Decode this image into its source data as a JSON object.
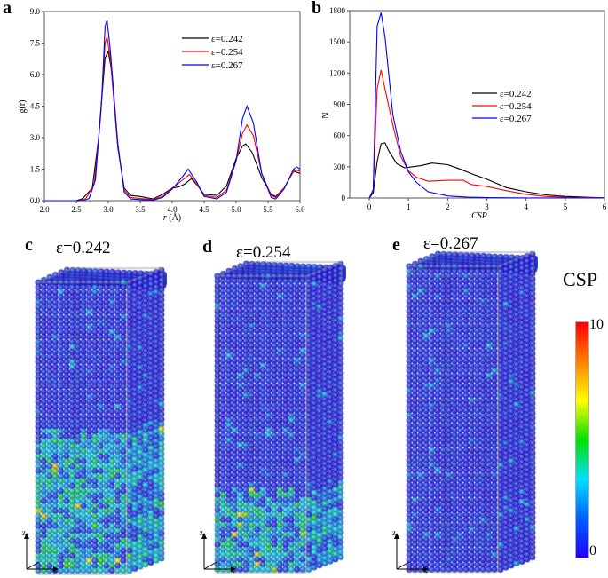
{
  "panels": {
    "a": "a",
    "b": "b",
    "c": "c",
    "d": "d",
    "e": "e"
  },
  "sim_titles": [
    "ε=0.242",
    "ε=0.254",
    "ε=0.267"
  ],
  "axis_triad": {
    "z": "z",
    "x": "x"
  },
  "colorbar": {
    "title": "CSP",
    "max_label": "10",
    "min_label": "0",
    "colors": [
      "#2000ff",
      "#0060ff",
      "#00e0ff",
      "#00e000",
      "#ffff00",
      "#ff8000",
      "#ff0000"
    ]
  },
  "chart_data": [
    {
      "type": "line",
      "panel": "a",
      "xlabel_var": "r",
      "xlabel_unit": "(Å)",
      "ylabel": "g(r)",
      "xlim": [
        2.0,
        6.0
      ],
      "ylim": [
        0,
        9.0
      ],
      "xticks": [
        "2.0",
        "2.5",
        "3.0",
        "3.5",
        "4.0",
        "4.5",
        "5.0",
        "5.5",
        "6.0"
      ],
      "yticks": [
        "0.0",
        "1.5",
        "3.0",
        "4.5",
        "6.0",
        "7.5",
        "9.0"
      ],
      "legend": "top-right",
      "series": [
        {
          "name": "ε=0.242",
          "color": "#000000",
          "x": [
            2.0,
            2.5,
            2.6,
            2.75,
            2.85,
            2.95,
            3.0,
            3.05,
            3.15,
            3.25,
            3.35,
            3.5,
            3.7,
            3.85,
            4.0,
            4.1,
            4.2,
            4.3,
            4.4,
            4.5,
            4.7,
            4.85,
            5.0,
            5.1,
            5.15,
            5.25,
            5.4,
            5.55,
            5.62,
            5.75,
            5.9,
            6.0
          ],
          "y": [
            0,
            0,
            0.1,
            0.6,
            3.0,
            6.8,
            7.1,
            6.2,
            2.5,
            0.6,
            0.25,
            0.2,
            0.08,
            0.3,
            0.6,
            0.65,
            0.8,
            1.05,
            0.7,
            0.3,
            0.25,
            0.7,
            2.0,
            2.6,
            2.7,
            2.3,
            1.1,
            0.3,
            0.2,
            0.6,
            1.4,
            1.3
          ]
        },
        {
          "name": "ε=0.254",
          "color": "#ff0000",
          "x": [
            2.0,
            2.55,
            2.65,
            2.78,
            2.88,
            2.95,
            2.98,
            3.03,
            3.15,
            3.25,
            3.35,
            3.5,
            3.7,
            3.85,
            4.0,
            4.15,
            4.27,
            4.38,
            4.5,
            4.7,
            4.85,
            5.0,
            5.1,
            5.17,
            5.27,
            5.4,
            5.55,
            5.62,
            5.75,
            5.9,
            5.95,
            6.0
          ],
          "y": [
            0,
            0,
            0.1,
            0.8,
            4.0,
            7.5,
            7.8,
            6.8,
            2.6,
            0.5,
            0.15,
            0.1,
            0.05,
            0.2,
            0.6,
            0.95,
            1.25,
            0.8,
            0.25,
            0.15,
            0.5,
            1.9,
            3.2,
            3.6,
            3.1,
            1.3,
            0.25,
            0.15,
            0.6,
            1.4,
            1.45,
            1.4
          ]
        },
        {
          "name": "ε=0.267",
          "color": "#0000ff",
          "x": [
            2.0,
            2.6,
            2.7,
            2.8,
            2.9,
            2.95,
            2.98,
            3.03,
            3.15,
            3.25,
            3.35,
            3.5,
            3.7,
            3.85,
            4.0,
            4.15,
            4.25,
            4.38,
            4.5,
            4.7,
            4.85,
            5.0,
            5.1,
            5.17,
            5.27,
            5.4,
            5.55,
            5.62,
            5.75,
            5.9,
            5.95,
            6.0
          ],
          "y": [
            0,
            0,
            0.1,
            1.0,
            5.0,
            8.3,
            8.6,
            7.2,
            2.7,
            0.4,
            0.08,
            0.05,
            0.02,
            0.15,
            0.55,
            1.1,
            1.5,
            0.9,
            0.2,
            0.08,
            0.4,
            1.9,
            3.9,
            4.5,
            3.7,
            1.3,
            0.15,
            0.08,
            0.55,
            1.5,
            1.6,
            1.5
          ]
        }
      ]
    },
    {
      "type": "line",
      "panel": "b",
      "xlabel": "CSP",
      "ylabel": "N",
      "xlim": [
        -0.5,
        6
      ],
      "ylim": [
        0,
        1800
      ],
      "xticks": [
        "0",
        "1",
        "2",
        "3",
        "4",
        "5",
        "6"
      ],
      "yticks": [
        "0",
        "300",
        "600",
        "900",
        "1200",
        "1500",
        "1800"
      ],
      "legend": "center-right",
      "series": [
        {
          "name": "ε=0.242",
          "color": "#000000",
          "x": [
            0,
            0.1,
            0.2,
            0.3,
            0.4,
            0.5,
            0.7,
            0.9,
            1.1,
            1.3,
            1.6,
            2.0,
            2.3,
            2.7,
            3.0,
            3.5,
            4.0,
            4.5,
            5.0,
            5.5,
            6.0
          ],
          "y": [
            0,
            50,
            350,
            520,
            530,
            450,
            330,
            290,
            300,
            310,
            335,
            320,
            280,
            220,
            180,
            100,
            60,
            30,
            15,
            8,
            2
          ]
        },
        {
          "name": "ε=0.254",
          "color": "#ff0000",
          "x": [
            0,
            0.1,
            0.2,
            0.3,
            0.4,
            0.6,
            0.8,
            1.0,
            1.2,
            1.5,
            2.0,
            2.4,
            2.6,
            3.0,
            3.5,
            4.0,
            4.5,
            5.0,
            6.0
          ],
          "y": [
            0,
            80,
            1050,
            1230,
            1050,
            700,
            400,
            260,
            200,
            160,
            170,
            170,
            130,
            110,
            70,
            35,
            15,
            8,
            2
          ]
        },
        {
          "name": "ε=0.267",
          "color": "#0000ff",
          "x": [
            0,
            0.1,
            0.2,
            0.3,
            0.4,
            0.6,
            0.8,
            1.0,
            1.2,
            1.5,
            2.0,
            2.5,
            3.0,
            4.0,
            6.0
          ],
          "y": [
            0,
            80,
            1650,
            1780,
            1550,
            800,
            450,
            250,
            150,
            60,
            20,
            8,
            3,
            1,
            0
          ]
        }
      ]
    }
  ]
}
